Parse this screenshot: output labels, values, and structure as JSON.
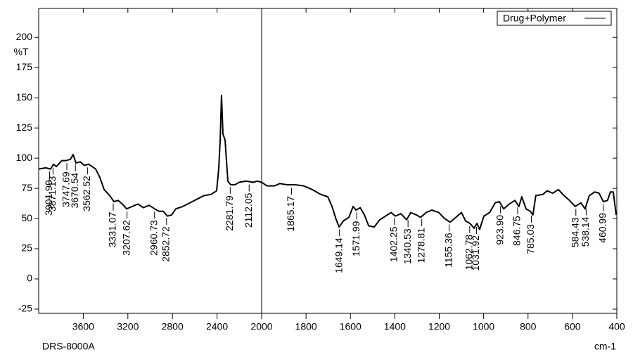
{
  "chart_data": {
    "type": "spectrum",
    "y_label": "%T",
    "x_label": "cm-1",
    "instrument": "DRS-8000A",
    "legend_position": "top-right",
    "xlim": [
      4000,
      400
    ],
    "x_break": 2000,
    "ylim": [
      -28.5,
      224
    ],
    "xticks": [
      3600,
      3200,
      2800,
      2400,
      2000,
      1800,
      1600,
      1400,
      1200,
      1000,
      800,
      600,
      400
    ],
    "yticks": [
      -25,
      0,
      25,
      50,
      75,
      100,
      125,
      150,
      175,
      200
    ],
    "series": [
      {
        "name": "Drug+Polymer",
        "color": "#000000",
        "x": [
          4000,
          3937,
          3893,
          3868,
          3842,
          3792,
          3754,
          3716,
          3691,
          3666,
          3628,
          3590,
          3552,
          3520,
          3489,
          3451,
          3413,
          3363,
          3325,
          3287,
          3249,
          3211,
          3161,
          3110,
          3060,
          3009,
          2959,
          2921,
          2883,
          2845,
          2808,
          2770,
          2707,
          2644,
          2580,
          2517,
          2454,
          2404,
          2385,
          2372,
          2360,
          2347,
          2328,
          2303,
          2278,
          2240,
          2202,
          2139,
          2076,
          2038,
          2000,
          1975,
          1943,
          1918,
          1886,
          1848,
          1810,
          1772,
          1734,
          1702,
          1683,
          1664,
          1651,
          1632,
          1607,
          1588,
          1575,
          1556,
          1537,
          1518,
          1493,
          1468,
          1442,
          1417,
          1398,
          1373,
          1347,
          1328,
          1303,
          1284,
          1259,
          1233,
          1202,
          1176,
          1151,
          1125,
          1100,
          1081,
          1062,
          1043,
          1030,
          1018,
          999,
          973,
          948,
          929,
          910,
          885,
          859,
          841,
          828,
          809,
          790,
          778,
          765,
          733,
          714,
          689,
          663,
          638,
          613,
          587,
          562,
          543,
          524,
          499,
          480,
          461,
          442,
          429,
          416,
          403
        ],
        "values": [
          91,
          92,
          91,
          95,
          93,
          98,
          98,
          99,
          103,
          96,
          97,
          94,
          95,
          93,
          91,
          84,
          74,
          69,
          64,
          65,
          62,
          58,
          60,
          62,
          59,
          61,
          58,
          56,
          56,
          52,
          53,
          58,
          60,
          63,
          66,
          69,
          70,
          73,
          91,
          115,
          152,
          120,
          115,
          81,
          78,
          78,
          80,
          81,
          80,
          81,
          80,
          77,
          77,
          79,
          78,
          78,
          77,
          74,
          70,
          68,
          60,
          49,
          43,
          48,
          51,
          60,
          57,
          59,
          53,
          44,
          43,
          49,
          52,
          55,
          52,
          54,
          49,
          55,
          53,
          51,
          55,
          57,
          55,
          50,
          47,
          51,
          55,
          48,
          46,
          42,
          46,
          41,
          52,
          55,
          63,
          64,
          58,
          62,
          65,
          60,
          68,
          58,
          56,
          53,
          69,
          70,
          73,
          71,
          74,
          69,
          65,
          60,
          63,
          58,
          69,
          72,
          71,
          64,
          65,
          72,
          72,
          53
        ]
      }
    ],
    "peaks": [
      3901.99,
      3871.13,
      3747.69,
      3670.54,
      3562.52,
      3331.07,
      3207.62,
      2960.73,
      2852.72,
      2281.79,
      2112.05,
      1865.17,
      1649.14,
      1571.99,
      1402.25,
      1340.53,
      1278.81,
      1155.36,
      1062.78,
      1031.92,
      {
        "value": 923.9,
        "label": "923.90"
      },
      846.75,
      785.03,
      584.43,
      538.14,
      460.99
    ]
  }
}
